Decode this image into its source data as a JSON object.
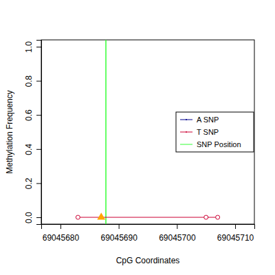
{
  "chart_data": {
    "type": "line",
    "x_label": "CpG Coordinates",
    "y_label": "Methylation Frequency",
    "x": [
      69045683,
      69045705,
      69045707
    ],
    "series": [
      {
        "name": "A SNP",
        "color": "#00008b",
        "values": [
          null,
          null,
          null
        ],
        "marker": "circle"
      },
      {
        "name": "T SNP",
        "color": "#cc0033",
        "values": [
          0,
          0,
          0
        ],
        "marker": "circle"
      }
    ],
    "markers": [
      {
        "x": 69045687,
        "value": 0,
        "color": "#ffa500",
        "marker": "triangle"
      }
    ],
    "snp_position": 69045687.8,
    "snp_position_label": "SNP Position",
    "snp_position_color": "#33ff33",
    "xlim": [
      69045676.7,
      69045713.3
    ],
    "xticks": [
      69045680,
      69045690,
      69045700,
      69045710
    ],
    "ylim": [
      -0.04,
      1.04
    ],
    "yticks": [
      {
        "value": 0,
        "label": "0.0"
      },
      0.2,
      0.4,
      0.6,
      0.8,
      {
        "value": 1,
        "label": "1.0"
      }
    ],
    "legend": "right",
    "grid": false
  }
}
